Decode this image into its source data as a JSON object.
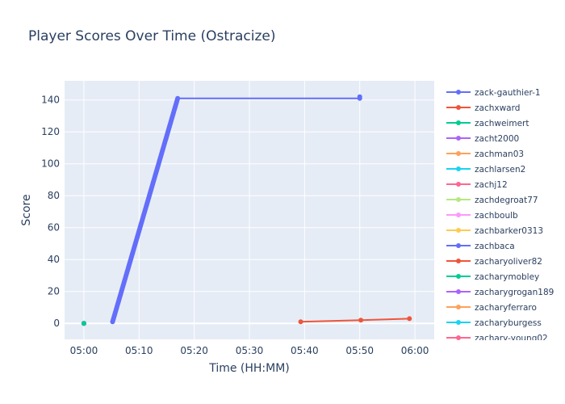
{
  "chart_data": {
    "type": "line",
    "title": "Player Scores Over Time (Ostracize)",
    "xlabel": "Time (HH:MM)",
    "ylabel": "Score",
    "x_ticks": [
      "05:00",
      "05:10",
      "05:20",
      "05:30",
      "05:40",
      "05:50",
      "06:00"
    ],
    "x_range_minutes": [
      -3.5,
      63.5
    ],
    "y_ticks": [
      0,
      20,
      40,
      60,
      80,
      100,
      120,
      140
    ],
    "ylim": [
      -10,
      152
    ],
    "grid": true,
    "legend_position": "right",
    "series": [
      {
        "name": "zack-gauthier-1",
        "color": "#636efa",
        "ramp": {
          "start": [
            5.2,
            1
          ],
          "end": [
            17.0,
            141
          ],
          "step": 1
        },
        "points": [
          [
            50.0,
            141
          ],
          [
            50.0,
            142
          ]
        ]
      },
      {
        "name": "zachxward",
        "color": "#ef553b",
        "points": [
          [
            39.3,
            1
          ],
          [
            50.2,
            2
          ],
          [
            59.0,
            3
          ]
        ]
      },
      {
        "name": "zachweimert",
        "color": "#00cc96",
        "points": [
          [
            0.0,
            0
          ]
        ]
      },
      {
        "name": "zacht2000",
        "color": "#ab63fa",
        "points": [
          [
            0.0,
            0
          ]
        ]
      },
      {
        "name": "zachman03",
        "color": "#ffa15a",
        "points": [
          [
            0.0,
            0
          ]
        ]
      },
      {
        "name": "zachlarsen2",
        "color": "#19d3f3",
        "points": [
          [
            0.0,
            0
          ]
        ]
      },
      {
        "name": "zachj12",
        "color": "#ff6692",
        "points": [
          [
            0.0,
            0
          ]
        ]
      },
      {
        "name": "zachdegroat77",
        "color": "#b6e880",
        "points": [
          [
            0.0,
            0
          ]
        ]
      },
      {
        "name": "zachboulb",
        "color": "#ff97ff",
        "points": [
          [
            0.0,
            0
          ]
        ]
      },
      {
        "name": "zachbarker0313",
        "color": "#fecb52",
        "points": [
          [
            0.0,
            0
          ]
        ]
      },
      {
        "name": "zachbaca",
        "color": "#636efa",
        "points": [
          [
            0.0,
            0
          ]
        ]
      },
      {
        "name": "zacharyoliver82",
        "color": "#ef553b",
        "points": [
          [
            0.0,
            0
          ]
        ]
      },
      {
        "name": "zacharymobley",
        "color": "#00cc96",
        "points": [
          [
            0.0,
            0
          ]
        ]
      },
      {
        "name": "zacharygrogan189",
        "color": "#ab63fa",
        "points": [
          [
            0.0,
            0
          ]
        ]
      },
      {
        "name": "zacharyferraro",
        "color": "#ffa15a",
        "points": [
          [
            0.0,
            0
          ]
        ]
      },
      {
        "name": "zacharyburgess",
        "color": "#19d3f3",
        "points": [
          [
            0.0,
            0
          ]
        ]
      },
      {
        "name": "zachary-young02",
        "color": "#ff6692",
        "points": [
          [
            0.0,
            0
          ]
        ]
      }
    ]
  }
}
